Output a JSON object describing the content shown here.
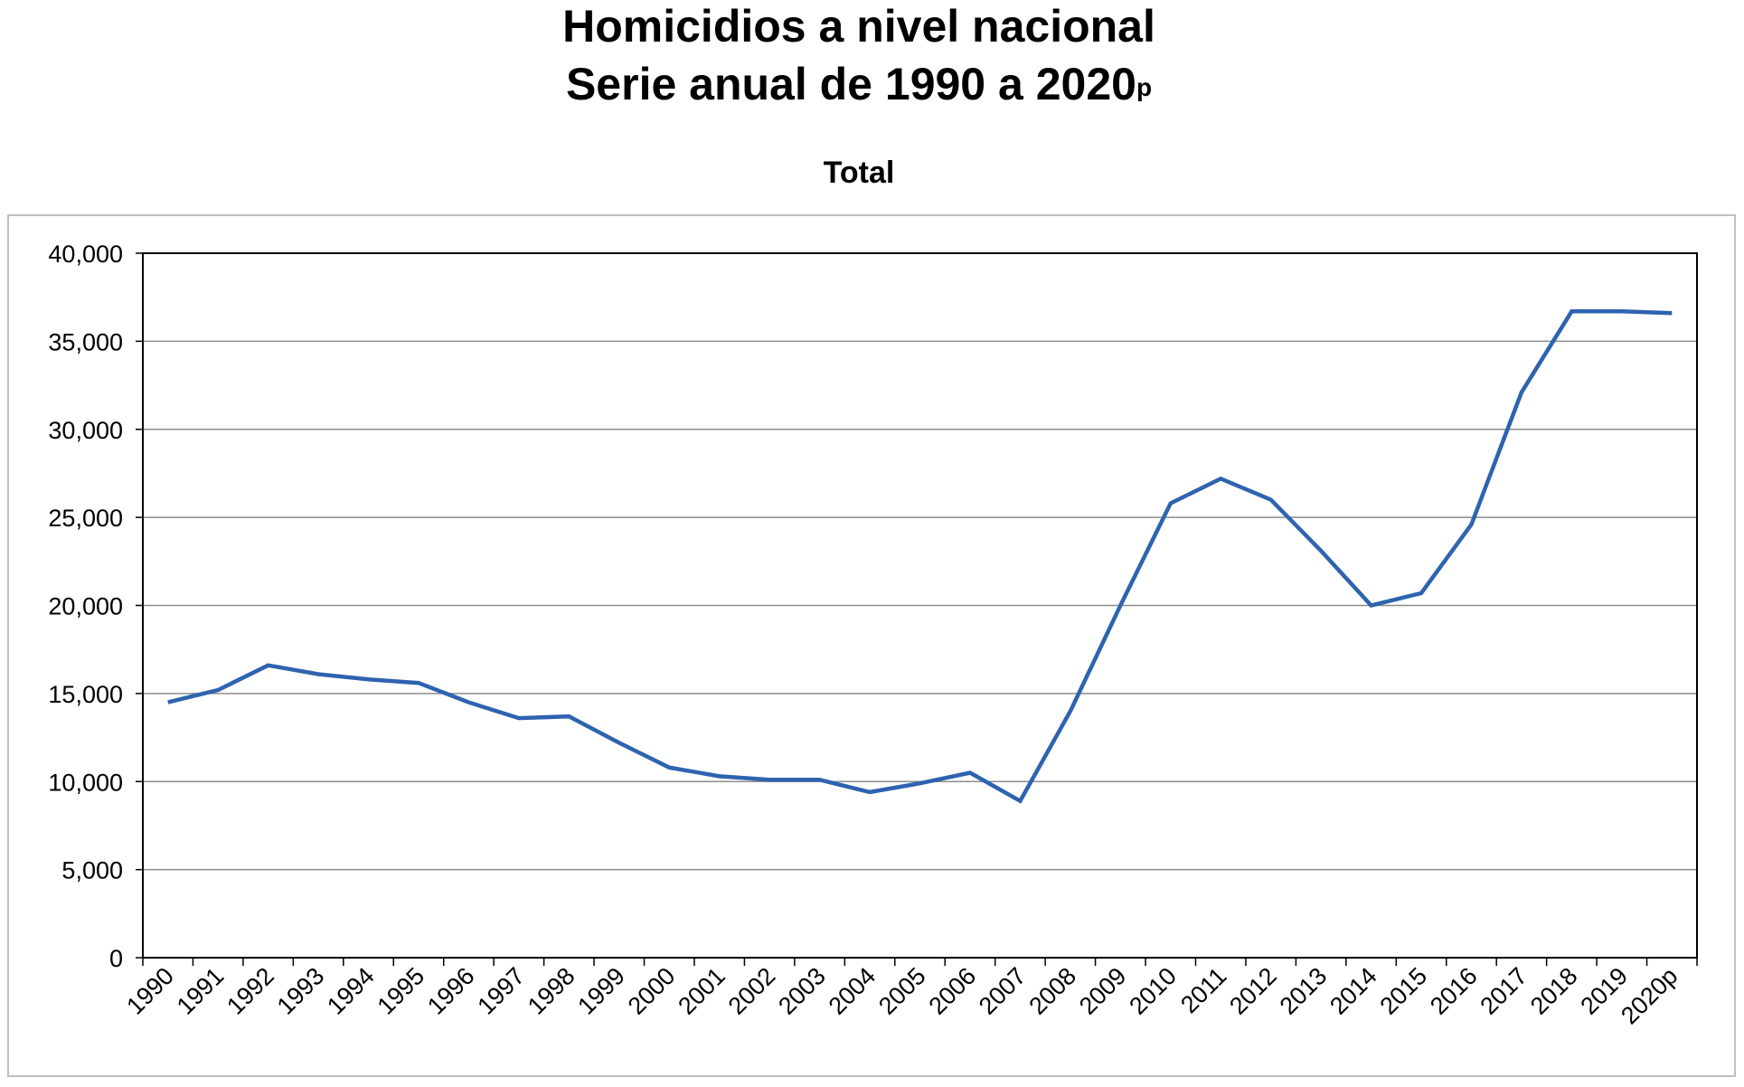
{
  "title": "Homicidios a nivel nacional",
  "subtitle_main": "Serie anual de 1990 a 2020",
  "subtitle_sup": "p",
  "chart_data": {
    "type": "line",
    "title": "Total",
    "xlabel": "",
    "ylabel": "",
    "ylim": [
      0,
      40000
    ],
    "yticks": [
      0,
      5000,
      10000,
      15000,
      20000,
      25000,
      30000,
      35000,
      40000
    ],
    "ytick_labels": [
      "0",
      "5,000",
      "10,000",
      "15,000",
      "20,000",
      "25,000",
      "30,000",
      "35,000",
      "40,000"
    ],
    "grid": true,
    "legend": "none",
    "line_color": "#2e63b0",
    "categories": [
      "1990",
      "1991",
      "1992",
      "1993",
      "1994",
      "1995",
      "1996",
      "1997",
      "1998",
      "1999",
      "2000",
      "2001",
      "2002",
      "2003",
      "2004",
      "2005",
      "2006",
      "2007",
      "2008",
      "2009",
      "2010",
      "2011",
      "2012",
      "2013",
      "2014",
      "2015",
      "2016",
      "2017",
      "2018",
      "2019",
      "2020p"
    ],
    "series": [
      {
        "values": [
          14500,
          15200,
          16600,
          16100,
          15800,
          15600,
          14500,
          13600,
          13700,
          12200,
          10800,
          10300,
          10100,
          10100,
          9400,
          9900,
          10500,
          8900,
          14000,
          20000,
          25800,
          27200,
          26000,
          23100,
          20000,
          20700,
          24600,
          32100,
          36700,
          36700,
          36600
        ]
      }
    ]
  }
}
